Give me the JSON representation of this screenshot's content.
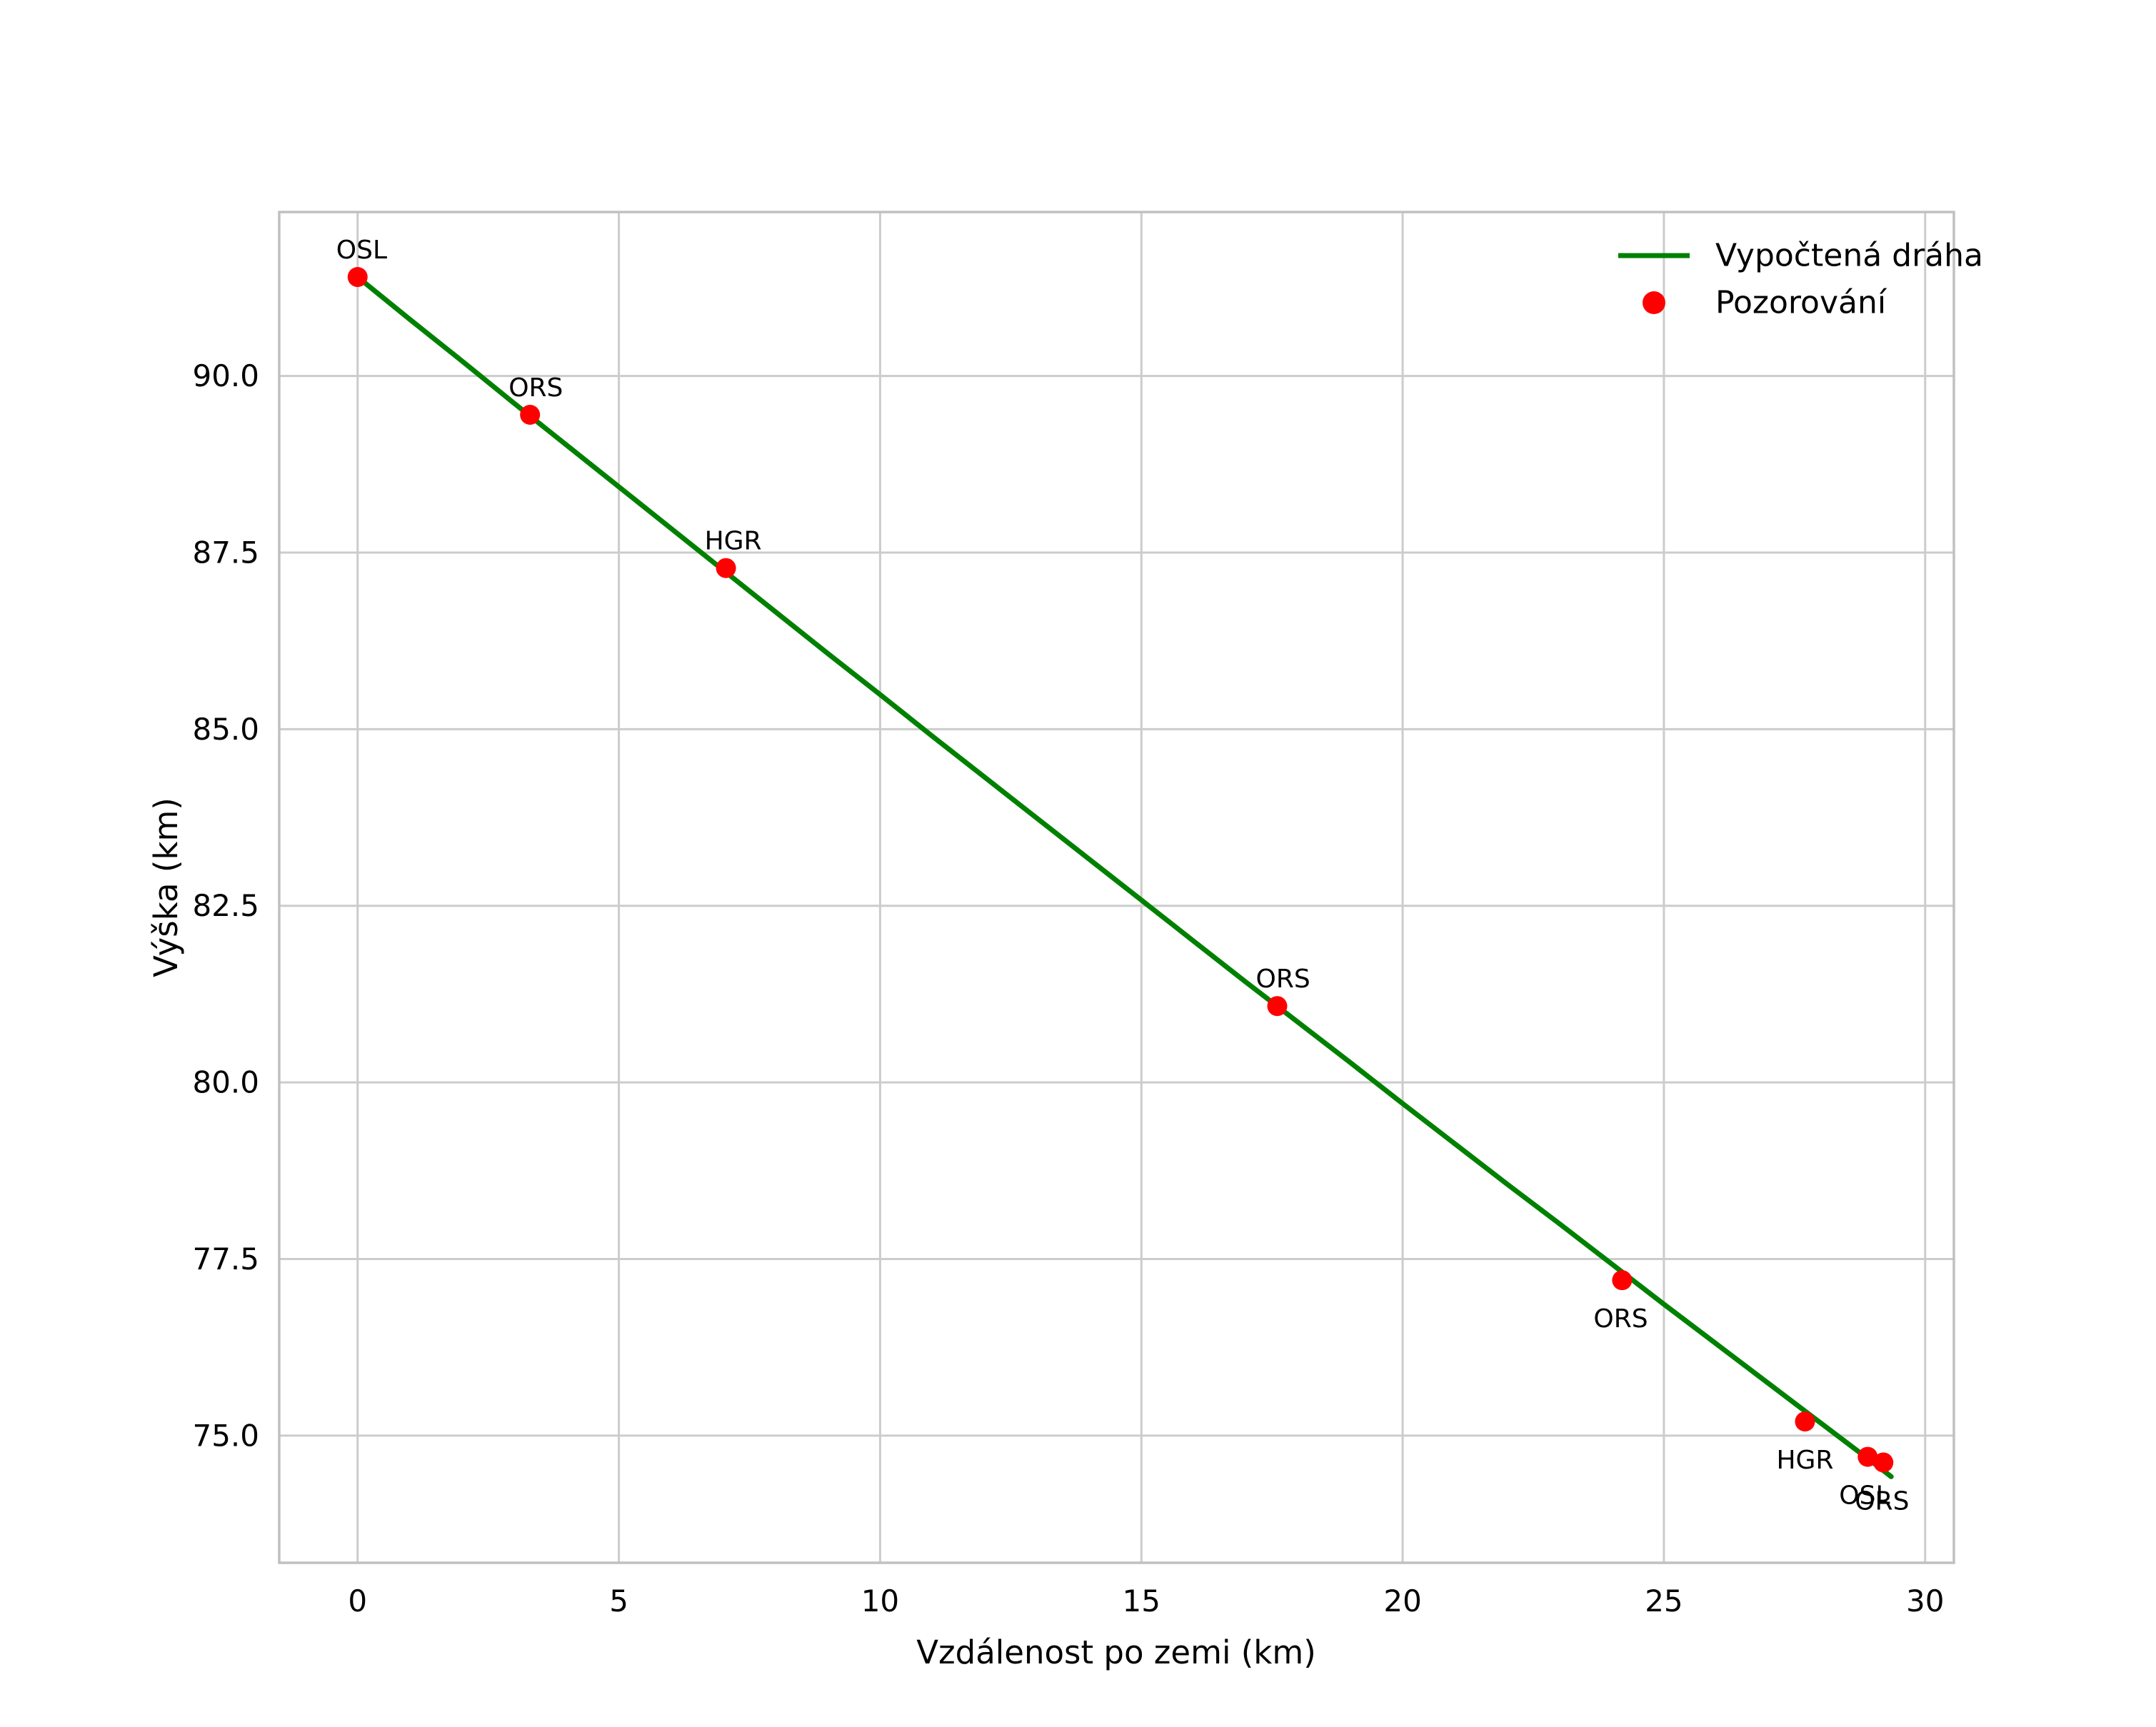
{
  "chart_data": {
    "type": "line",
    "title": "",
    "xlabel": "Vzdálenost po zemi (km)",
    "ylabel": "Výška (km)",
    "xlim": [
      -1.5,
      30.55
    ],
    "ylim": [
      73.2,
      92.32
    ],
    "xticks": [
      0,
      5,
      10,
      15,
      20,
      25,
      30
    ],
    "xtick_labels": [
      "0",
      "5",
      "10",
      "15",
      "20",
      "25",
      "30"
    ],
    "yticks": [
      75.0,
      77.5,
      80.0,
      82.5,
      85.0,
      87.5,
      90.0
    ],
    "ytick_labels": [
      "75.0",
      "77.5",
      "80.0",
      "82.5",
      "85.0",
      "87.5",
      "90.0"
    ],
    "grid": true,
    "background_color": "#ffffff",
    "grid_color": "#cccccc",
    "spine_color": "#c0c0c0",
    "text_color": "#000000",
    "series": [
      {
        "name": "Vypočtená dráha",
        "type": "line",
        "color": "#008000",
        "line_width": 7,
        "x": [
          0,
          1,
          2,
          3,
          4,
          5,
          6,
          7,
          8,
          9,
          10,
          11,
          12,
          13,
          14,
          15,
          16,
          17,
          18,
          19,
          20,
          21,
          22,
          23,
          24,
          25,
          26,
          27,
          28,
          29,
          29.35
        ],
        "y": [
          91.4,
          90.8,
          90.21,
          89.61,
          89.02,
          88.43,
          87.84,
          87.25,
          86.66,
          86.07,
          85.49,
          84.9,
          84.32,
          83.74,
          83.16,
          82.58,
          82.0,
          81.42,
          80.85,
          80.28,
          79.7,
          79.13,
          78.56,
          78.0,
          77.43,
          76.86,
          76.3,
          75.74,
          75.18,
          74.62,
          74.42
        ]
      },
      {
        "name": "Pozorování",
        "type": "scatter",
        "color": "#ff0000",
        "marker_radius": 14,
        "points": [
          {
            "x": 0.0,
            "y": 91.4,
            "label": "OSL",
            "label_side": "above"
          },
          {
            "x": 3.3,
            "y": 89.45,
            "label": "ORS",
            "label_side": "above"
          },
          {
            "x": 7.05,
            "y": 87.28,
            "label": "HGR",
            "label_side": "above"
          },
          {
            "x": 17.6,
            "y": 81.08,
            "label": "ORS",
            "label_side": "above"
          },
          {
            "x": 24.2,
            "y": 77.2,
            "label": "ORS",
            "label_side": "below"
          },
          {
            "x": 27.7,
            "y": 75.2,
            "label": "HGR",
            "label_side": "below"
          },
          {
            "x": 28.9,
            "y": 74.7,
            "label": "OSL",
            "label_side": "below"
          },
          {
            "x": 29.2,
            "y": 74.62,
            "label": "ORS",
            "label_side": "below"
          }
        ]
      }
    ],
    "legend": {
      "position": "upper right",
      "entries": [
        {
          "label": "Vypočtená dráha",
          "marker": "line",
          "color": "#008000"
        },
        {
          "label": "Pozorování",
          "marker": "point",
          "color": "#ff0000"
        }
      ]
    }
  }
}
